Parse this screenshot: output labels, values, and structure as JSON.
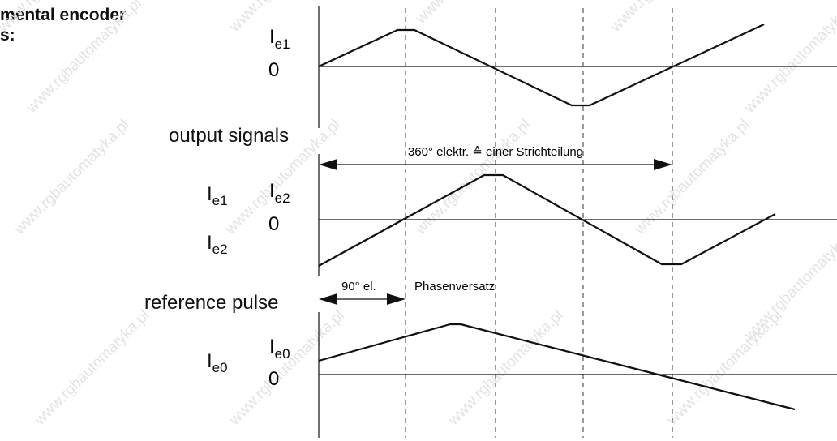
{
  "heading": {
    "line1": "mental encoder",
    "line2": "s:"
  },
  "left_labels": {
    "output_signals": "output signals",
    "ie1": {
      "base": "I",
      "sub": "e1"
    },
    "ie2": {
      "base": "I",
      "sub": "e2"
    },
    "reference_pulse": "reference pulse",
    "ie0": {
      "base": "I",
      "sub": "e0"
    }
  },
  "plot_labels": {
    "ie1": {
      "base": "I",
      "sub": "e1"
    },
    "ie2": {
      "base": "I",
      "sub": "e2"
    },
    "ie0": {
      "base": "I",
      "sub": "e0"
    },
    "zero": "0"
  },
  "annotations": {
    "period": "360° elektr. ≙ einer Strichteilung",
    "phase_amount": "90° el.",
    "phase_label": "Phasenversatz"
  },
  "watermark": "www.rgbautomatyka.pl"
}
